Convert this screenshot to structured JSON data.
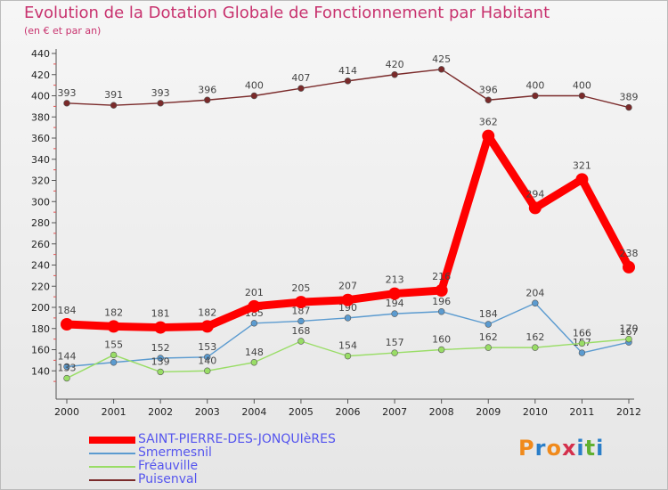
{
  "header": {
    "title": "Evolution de la Dotation Globale de Fonctionnement par Habitant",
    "subtitle": "(en € et par an)"
  },
  "logo": {
    "text": "Proxiti",
    "colors": [
      "#f08a1c",
      "#2a7ec8",
      "#f08a1c",
      "#d4304c",
      "#2a7ec8",
      "#60b030",
      "#2a7ec8"
    ]
  },
  "chart_data": {
    "type": "line",
    "title": "Evolution de la Dotation Globale de Fonctionnement par Habitant",
    "subtitle": "(en € et par an)",
    "xlabel": "",
    "ylabel": "",
    "categories": [
      "2000",
      "2001",
      "2002",
      "2003",
      "2004",
      "2005",
      "2006",
      "2007",
      "2008",
      "2009",
      "2010",
      "2011",
      "2012"
    ],
    "ylim": [
      120,
      440
    ],
    "yticks": [
      140,
      160,
      180,
      200,
      220,
      240,
      260,
      280,
      300,
      320,
      340,
      360,
      380,
      400,
      420,
      440
    ],
    "grid": false,
    "legend_position": "bottom-left",
    "series": [
      {
        "name": "SAINT-PIERRE-DES-JONQUIèRES",
        "color": "#ff0000",
        "thick": true,
        "values": [
          184,
          182,
          181,
          182,
          201,
          205,
          207,
          213,
          216,
          362,
          294,
          321,
          238
        ],
        "labels": [
          "184",
          "182",
          "181",
          "182",
          "201",
          "205",
          "207",
          "213",
          "216",
          "362",
          "294",
          "321",
          "238"
        ]
      },
      {
        "name": "Smermesnil",
        "color": "#5b9bd0",
        "thick": false,
        "values": [
          144,
          148,
          152,
          153,
          185,
          187,
          190,
          194,
          196,
          184,
          204,
          157,
          167
        ],
        "labels": [
          "144",
          "",
          "152",
          "153",
          "185",
          "187",
          "190",
          "194",
          "196",
          "184",
          "204",
          "157",
          "167"
        ]
      },
      {
        "name": "Fréauville",
        "color": "#99dd66",
        "thick": false,
        "values": [
          133,
          155,
          139,
          140,
          148,
          168,
          154,
          157,
          160,
          162,
          162,
          166,
          170
        ],
        "labels": [
          "133",
          "155",
          "139",
          "140",
          "148",
          "168",
          "154",
          "157",
          "160",
          "162",
          "162",
          "166",
          "170"
        ]
      },
      {
        "name": "Puisenval",
        "color": "#7a2a2a",
        "thick": false,
        "values": [
          393,
          391,
          393,
          396,
          400,
          407,
          414,
          420,
          425,
          396,
          400,
          400,
          389
        ],
        "labels": [
          "393",
          "391",
          "393",
          "396",
          "400",
          "407",
          "414",
          "420",
          "425",
          "396",
          "400",
          "400",
          "389"
        ]
      }
    ]
  }
}
